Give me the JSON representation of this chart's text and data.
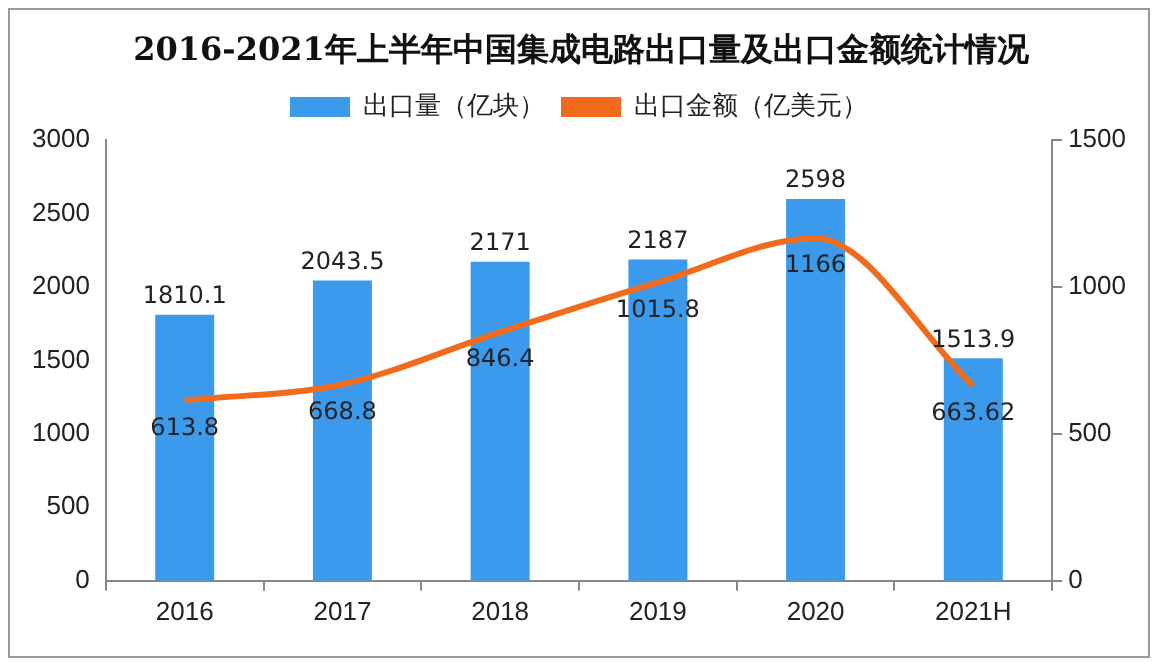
{
  "chart_data": {
    "type": "bar",
    "title": "2016-2021年上半年中国集成电路出口量及出口金额统计情况",
    "categories": [
      "2016",
      "2017",
      "2018",
      "2019",
      "2020",
      "2021H"
    ],
    "series": [
      {
        "name": "出口量（亿块）",
        "color": "#3c9aec",
        "values": [
          1810.1,
          2043.5,
          2171,
          2187,
          2598,
          1513.9
        ]
      },
      {
        "name": "出口金额（亿美元）",
        "type": "line",
        "axis": "y2",
        "color": "#f26b1d",
        "values": [
          613.8,
          668.8,
          846.4,
          1015.8,
          1166,
          663.62
        ]
      }
    ],
    "ylim": [
      0,
      3000
    ],
    "yticks": [
      0,
      500,
      1000,
      1500,
      2000,
      2500,
      3000
    ],
    "y2lim": [
      0,
      1500
    ],
    "y2ticks": [
      0,
      500,
      1000,
      1500
    ],
    "grid": false,
    "legend": "top",
    "marker": "none",
    "data_labels": true
  }
}
